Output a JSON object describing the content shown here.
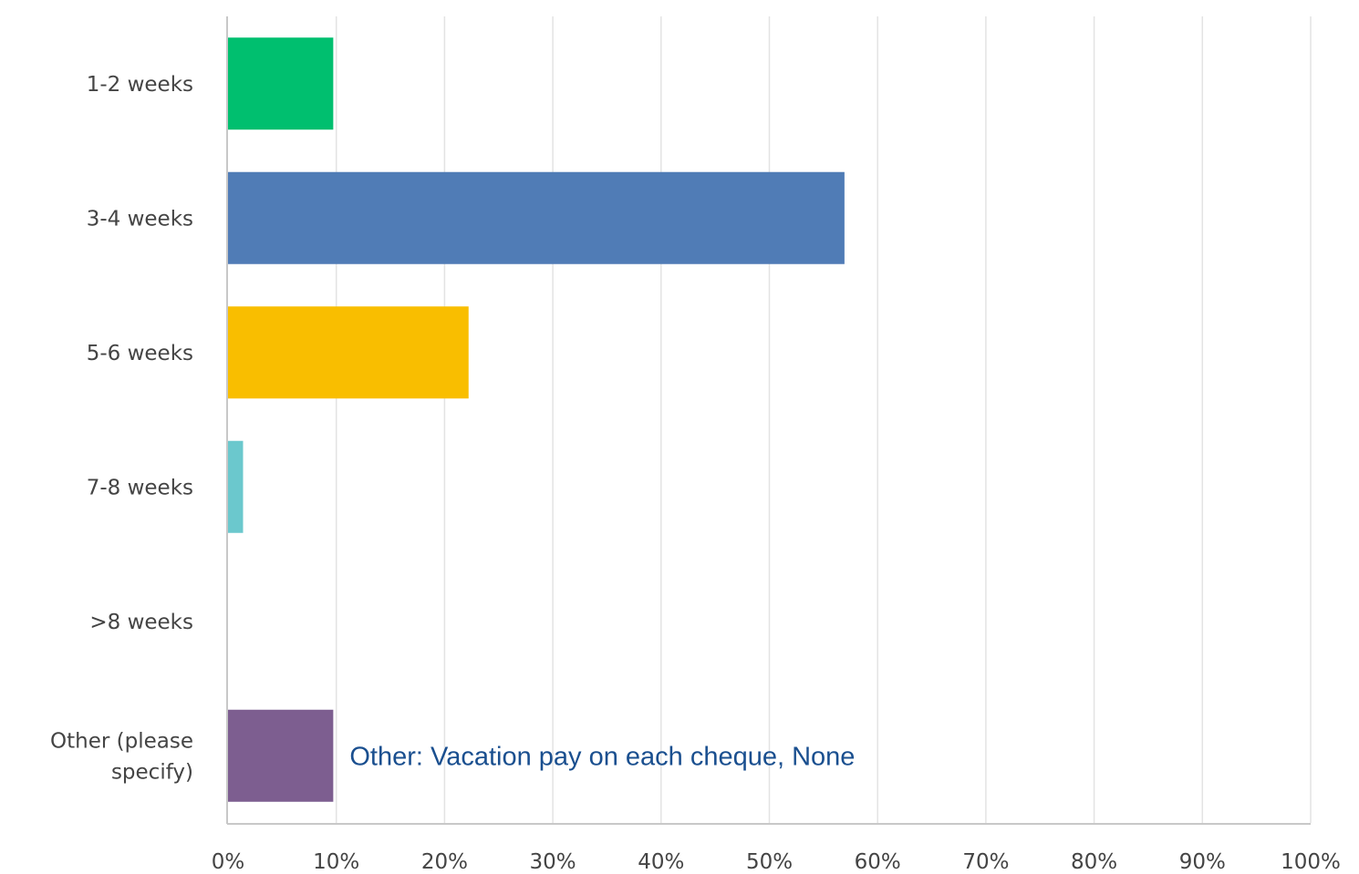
{
  "chart_data": {
    "type": "bar",
    "orientation": "horizontal",
    "categories": [
      "1-2 weeks",
      "3-4 weeks",
      "5-6 weeks",
      "7-8 weeks",
      ">8 weeks",
      "Other (please specify)"
    ],
    "category_label_lines": [
      [
        "1-2 weeks"
      ],
      [
        "3-4 weeks"
      ],
      [
        "5-6 weeks"
      ],
      [
        "7-8 weeks"
      ],
      [
        ">8 weeks"
      ],
      [
        "Other (please",
        "specify)"
      ]
    ],
    "values": [
      9.72,
      56.94,
      22.22,
      1.39,
      0,
      9.72
    ],
    "colors": [
      "#00bf6f",
      "#507cb6",
      "#f9be00",
      "#6bc8cd",
      "#ff8b4f",
      "#7d5e90"
    ],
    "xlim": [
      0,
      100
    ],
    "x_ticks": [
      "0%",
      "10%",
      "20%",
      "30%",
      "40%",
      "50%",
      "60%",
      "70%",
      "80%",
      "90%",
      "100%"
    ],
    "grid": "vertical",
    "legend": "none",
    "title": "",
    "xlabel": "",
    "ylabel": "",
    "annotations": [
      {
        "text": "Other: Vacation pay on each cheque, None",
        "category": "Other (please specify)"
      }
    ]
  }
}
